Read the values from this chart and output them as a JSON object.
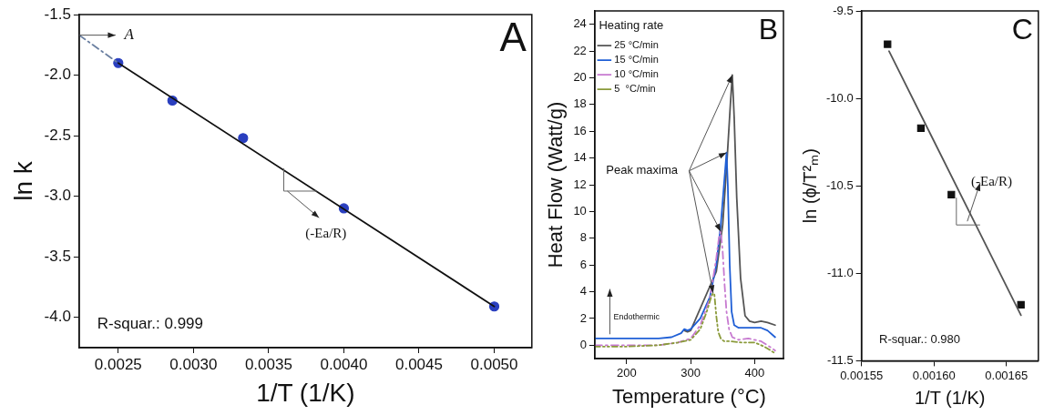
{
  "chart_data": [
    {
      "type": "scatter",
      "title": "A",
      "xlabel": "1/T (1/K)",
      "ylabel": "ln k",
      "xlim": [
        0.00224,
        0.00525
      ],
      "ylim": [
        -4.25,
        -1.5
      ],
      "xticks": [
        0.0025,
        {
          "value": 0.003,
          "label": "0.0030"
        },
        0.0035,
        {
          "value": 0.004,
          "label": "0.0040"
        },
        0.0045,
        {
          "value": 0.005,
          "label": "0.0050"
        }
      ],
      "yticks": [
        {
          "value": -4,
          "label": "-4.0"
        },
        -3.5,
        {
          "value": -3,
          "label": "-3.0"
        },
        -2.5,
        {
          "value": -2,
          "label": "-2.0"
        },
        -1.5
      ],
      "grid": false,
      "legend": false,
      "series": [
        {
          "color": "#2a3fbf",
          "marker": "circle",
          "x": [
            0.0025,
            0.00286,
            0.00333,
            0.004,
            0.005
          ],
          "values": [
            -1.9,
            -2.21,
            -2.52,
            -3.1,
            -3.91
          ]
        },
        {
          "type": "line",
          "color": "#111111",
          "marker": "none",
          "line_style": "solid",
          "x": [
            0.0025,
            0.005
          ],
          "values": [
            -1.9,
            -3.91
          ]
        },
        {
          "type": "line",
          "color": "#6a7fa0",
          "marker": "none",
          "line_style": "dashed",
          "x": [
            0.00224,
            0.0025
          ],
          "values": [
            -1.67,
            -1.9
          ]
        }
      ],
      "annotations": [
        {
          "text": "A",
          "x": 0.00224,
          "y": -1.67
        },
        "(-Ea/R)",
        "R-squar.: 0.999"
      ]
    },
    {
      "type": "line",
      "title": "B",
      "xlabel": "Temperature (°C)",
      "ylabel": "Heat Flow (Watt/g)",
      "legend_title": "Heating rate",
      "xlim": [
        150,
        445
      ],
      "ylim": [
        -1,
        25
      ],
      "xticks": [
        200,
        300,
        400
      ],
      "yticks": [
        0,
        2,
        4,
        6,
        8,
        10,
        12,
        14,
        16,
        18,
        20,
        22,
        24
      ],
      "grid": false,
      "legend": "top left",
      "series": [
        {
          "name": "25 °C/min",
          "color": "#555555",
          "line_style": "solid",
          "x": [
            290,
            295,
            300,
            340,
            350,
            357,
            362,
            365,
            368,
            372,
            378,
            385,
            392,
            400,
            410,
            420,
            432
          ],
          "values": [
            1.1,
            1.0,
            1.1,
            5.5,
            9,
            14,
            18,
            20.2,
            17,
            11,
            5,
            2.2,
            1.8,
            1.7,
            1.8,
            1.7,
            1.5
          ]
        },
        {
          "name": "15 °C/min",
          "color": "#1f5fd6",
          "line_style": "solid",
          "x": [
            150,
            200,
            250,
            270,
            285,
            290,
            295,
            300,
            315,
            330,
            340,
            347,
            352,
            356,
            358,
            361,
            364,
            368,
            375,
            390,
            410,
            420,
            432
          ],
          "values": [
            0.5,
            0.5,
            0.5,
            0.6,
            0.9,
            1.2,
            1.1,
            1.2,
            2.0,
            3.6,
            6.0,
            9,
            12,
            14.4,
            12,
            6,
            2.5,
            1.5,
            1.3,
            1.3,
            1.3,
            1.1,
            0.6
          ]
        },
        {
          "name": "10 °C/min",
          "color": "#c77ad0",
          "line_style": "dashed",
          "x": [
            150,
            200,
            250,
            280,
            300,
            315,
            330,
            340,
            344,
            347,
            350,
            353,
            356,
            360,
            365,
            375,
            390,
            410,
            420,
            432
          ],
          "values": [
            0,
            0,
            0,
            0.2,
            0.5,
            1.5,
            3.5,
            6.5,
            8,
            8.5,
            7,
            4.5,
            2.5,
            1.2,
            0.6,
            0.4,
            0.5,
            0.3,
            0,
            -0.4
          ]
        },
        {
          "name": "5  °C/min",
          "color": "#8a9a3a",
          "line_style": "dotted",
          "x": [
            150,
            200,
            250,
            280,
            300,
            315,
            325,
            332,
            335,
            337,
            340,
            343,
            347,
            352,
            360,
            380,
            400,
            415,
            425,
            432
          ],
          "values": [
            -0.1,
            -0.1,
            0,
            0.2,
            0.4,
            1.2,
            2.5,
            3.6,
            3.9,
            3.8,
            2.2,
            1.0,
            0.5,
            0.3,
            0.3,
            0.2,
            0.2,
            -0.1,
            -0.4,
            -0.6
          ]
        }
      ],
      "annotations": [
        {
          "text": "Peak maxima",
          "x": 365,
          "y": 20.2
        },
        "Endothermic"
      ]
    },
    {
      "type": "scatter",
      "title": "C",
      "xlabel": "1/T (1/K)",
      "ylabel": "ln (ϕ/T²ₘ)",
      "xlim": [
        0.00155,
        0.001672
      ],
      "ylim": [
        -11.5,
        -9.5
      ],
      "xticks": [
        0.00155,
        {
          "value": 0.0016,
          "label": "0.00160"
        },
        0.00165
      ],
      "yticks": [
        -11.5,
        {
          "value": -11,
          "label": "-11.0"
        },
        -10.5,
        {
          "value": -10,
          "label": "-10.0"
        },
        -9.5
      ],
      "grid": false,
      "legend": false,
      "series": [
        {
          "color": "#111111",
          "marker": "square",
          "x": [
            0.001568,
            0.001591,
            0.001612,
            0.00166
          ],
          "values": [
            -9.69,
            -10.17,
            -10.55,
            -11.18
          ]
        },
        {
          "type": "line",
          "color": "#555555",
          "marker": "none",
          "line_style": "solid",
          "x": [
            0.001569,
            0.00166
          ],
          "values": [
            -9.73,
            -11.24
          ]
        }
      ],
      "annotations": [
        {
          "text": "(-Ea/R)",
          "x": 0.001623,
          "y": -10.63
        },
        "R-squar.: 0.980"
      ]
    }
  ]
}
